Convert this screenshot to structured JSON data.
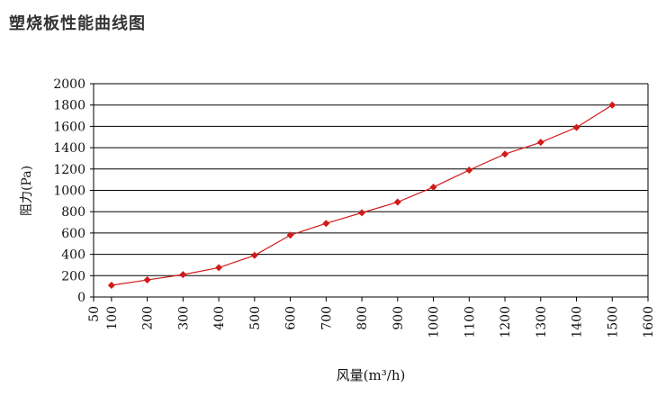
{
  "page": {
    "title": "塑烧板性能曲线图"
  },
  "colors": {
    "series": "#d11a1a",
    "grid": "#000000",
    "background": "#ffffff"
  },
  "chart_data": {
    "type": "line",
    "title": "塑烧板性能曲线图",
    "xlabel": "风量(m³/h)",
    "ylabel": "阻力(Pa)",
    "xlim": [
      50,
      1600
    ],
    "ylim": [
      0,
      2000
    ],
    "x_ticks": [
      50,
      100,
      200,
      300,
      400,
      500,
      600,
      700,
      800,
      900,
      1000,
      1100,
      1200,
      1300,
      1400,
      1500,
      1600
    ],
    "y_ticks": [
      0,
      200,
      400,
      600,
      800,
      1000,
      1200,
      1400,
      1600,
      1800,
      2000
    ],
    "grid": "horizontal",
    "legend": "none",
    "series": [
      {
        "x": [
          100,
          200,
          300,
          400,
          500,
          600,
          700,
          800,
          900,
          1000,
          1100,
          1200,
          1300,
          1400,
          1500
        ],
        "values": [
          110,
          160,
          210,
          275,
          390,
          580,
          690,
          790,
          890,
          1030,
          1190,
          1340,
          1450,
          1590,
          1800
        ],
        "marker": "diamond"
      }
    ]
  }
}
